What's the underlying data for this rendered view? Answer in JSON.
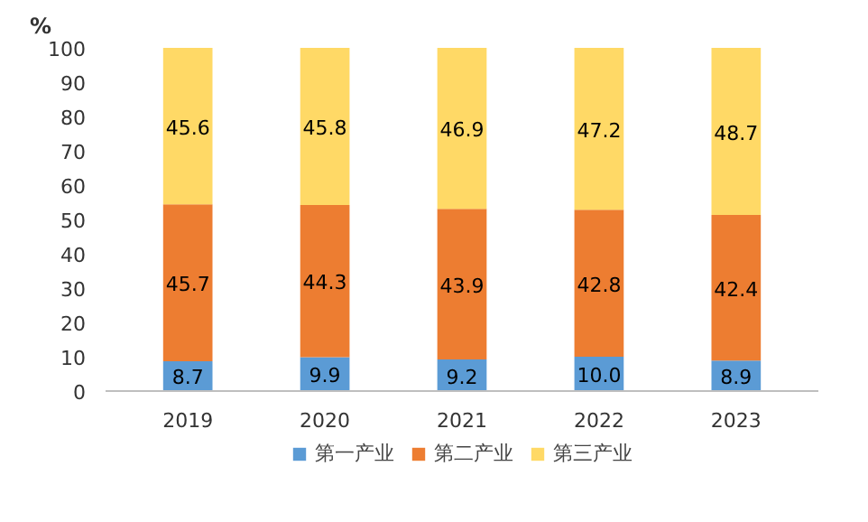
{
  "chart_data": {
    "type": "bar",
    "stacked": true,
    "ylabel": "%",
    "categories": [
      "2019",
      "2020",
      "2021",
      "2022",
      "2023"
    ],
    "series": [
      {
        "name": "第一产业",
        "color": "#5b9bd5",
        "values": [
          8.7,
          9.9,
          9.2,
          10.0,
          8.9
        ],
        "value_labels": [
          "8.7",
          "9.9",
          "9.2",
          "10.0",
          "8.9"
        ]
      },
      {
        "name": "第二产业",
        "color": "#ed7d31",
        "values": [
          45.7,
          44.3,
          43.9,
          42.8,
          42.4
        ],
        "value_labels": [
          "45.7",
          "44.3",
          "43.9",
          "42.8",
          "42.4"
        ]
      },
      {
        "name": "第三产业",
        "color": "#ffd966",
        "values": [
          45.6,
          45.8,
          46.9,
          47.2,
          48.7
        ],
        "value_labels": [
          "45.6",
          "45.8",
          "46.9",
          "47.2",
          "48.7"
        ]
      }
    ],
    "ylim": [
      0,
      100
    ],
    "yticks": [
      0,
      10,
      20,
      30,
      40,
      50,
      60,
      70,
      80,
      90,
      100
    ],
    "grid": false,
    "legend": "bottom",
    "data_labels": true
  }
}
